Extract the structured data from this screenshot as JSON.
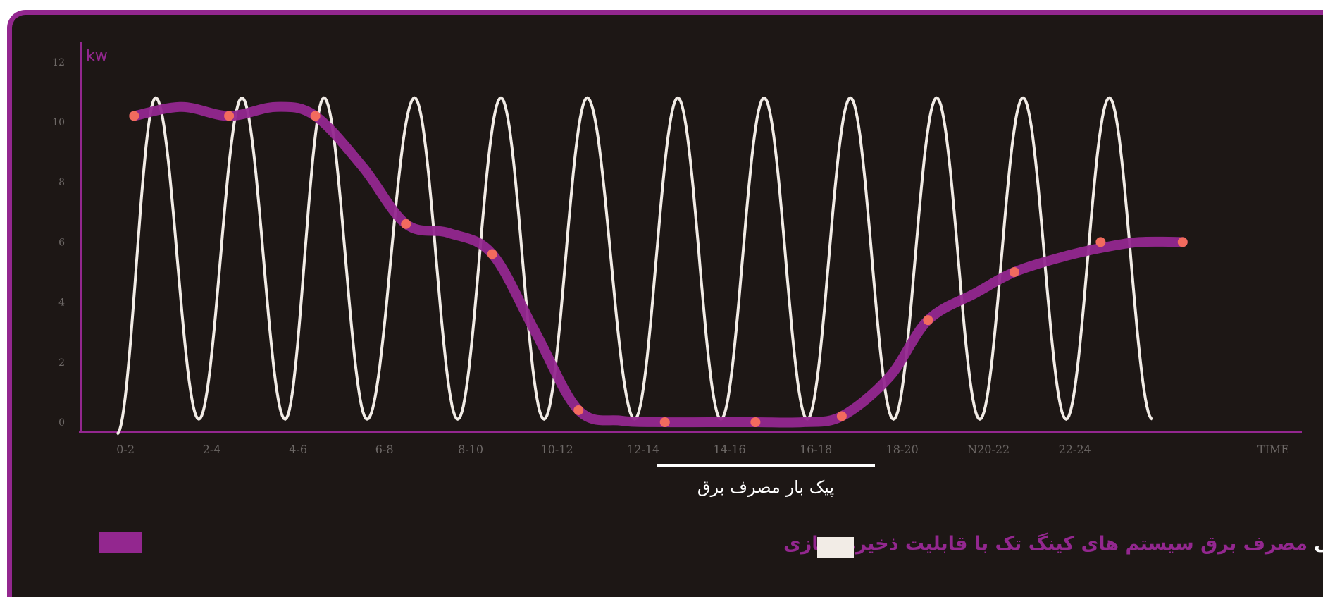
{
  "chart_data": {
    "type": "line",
    "unit_label": "kw",
    "time_label": "TIME",
    "yticks": [
      "0",
      "2",
      "4",
      "6",
      "8",
      "10",
      "12"
    ],
    "ylim": [
      0,
      12
    ],
    "categories": [
      "0-2",
      "2-4",
      "4-6",
      "6-8",
      "8-10",
      "10-12",
      "12-14",
      "14-16",
      "16-18",
      "18-20",
      "N20-22",
      "22-24"
    ],
    "peak_label": "پیک بار مصرف برق",
    "grid": false,
    "colors": {
      "storage": "#93278f",
      "other": "#f2ece6",
      "points": "#f26b5e",
      "axis": "#93278f"
    },
    "series": [
      {
        "name": "مصرف برق سیستم های کینگ تک با قابلیت ذخیره سازی",
        "kind": "smooth",
        "x": [
          0.15,
          1.25,
          2.25,
          3.3,
          4.3,
          5.3,
          6.3,
          7.35,
          8.35,
          9.35,
          10.35,
          11.35,
          12.3
        ],
        "y": [
          10.2,
          10.2,
          10.2,
          6.6,
          5.6,
          0.4,
          0.0,
          0.0,
          0.2,
          3.4,
          5.0,
          6.0,
          6.0
        ],
        "smooth_x": [
          0.15,
          0.7,
          1.25,
          1.8,
          2.25,
          2.8,
          3.3,
          3.8,
          4.3,
          4.8,
          5.3,
          5.8,
          6.3,
          6.8,
          7.35,
          7.9,
          8.35,
          8.9,
          9.35,
          9.9,
          10.35,
          10.9,
          11.35,
          11.8,
          12.3
        ],
        "smooth_y": [
          10.2,
          10.5,
          10.2,
          10.5,
          10.2,
          8.5,
          6.6,
          6.3,
          5.6,
          3.0,
          0.4,
          0.05,
          0.0,
          0.0,
          0.0,
          0.0,
          0.2,
          1.5,
          3.4,
          4.3,
          5.0,
          5.5,
          5.8,
          6.0,
          6.0
        ]
      },
      {
        "name": "مصرف برق سایر سیستم های سرمایشی",
        "kind": "oscillation",
        "x_start": -0.05,
        "x_end": 12.0,
        "peaks_x": [
          0.4,
          1.4,
          2.35,
          3.4,
          4.4,
          5.4,
          6.45,
          7.45,
          8.45,
          9.45,
          10.45,
          11.45
        ],
        "troughs_x": [
          0.9,
          1.9,
          2.85,
          3.9,
          4.9,
          5.95,
          6.95,
          7.95,
          8.95,
          9.95,
          10.95,
          11.95
        ],
        "max": 10.8,
        "min": 0.1
      }
    ]
  }
}
